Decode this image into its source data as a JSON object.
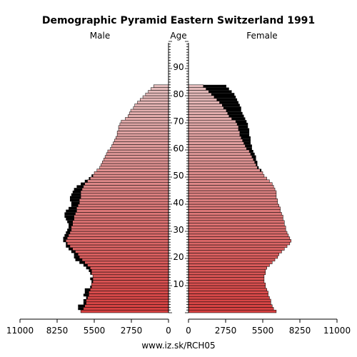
{
  "chart_data": {
    "type": "bar",
    "title": "Demographic Pyramid Eastern Switzerland 1991",
    "male_label": "Male",
    "female_label": "Female",
    "age_label": "Age",
    "source": "www.iz.sk/RCH05",
    "xlim": [
      0,
      11000
    ],
    "x_ticks": [
      "11000",
      "8250",
      "5500",
      "2750",
      "0"
    ],
    "x_tick_values": [
      11000,
      8250,
      5500,
      2750,
      0
    ],
    "age_ticks": [
      10,
      20,
      30,
      40,
      50,
      60,
      70,
      80,
      90
    ],
    "bar_color": "#d98888",
    "excess_color": "#000000",
    "ages": [
      0,
      1,
      2,
      3,
      4,
      5,
      6,
      7,
      8,
      9,
      10,
      11,
      12,
      13,
      14,
      15,
      16,
      17,
      18,
      19,
      20,
      21,
      22,
      23,
      24,
      25,
      26,
      27,
      28,
      29,
      30,
      31,
      32,
      33,
      34,
      35,
      36,
      37,
      38,
      39,
      40,
      41,
      42,
      43,
      44,
      45,
      46,
      47,
      48,
      49,
      50,
      51,
      52,
      53,
      54,
      55,
      56,
      57,
      58,
      59,
      60,
      61,
      62,
      63,
      64,
      65,
      66,
      67,
      68,
      69,
      70,
      71,
      72,
      73,
      74,
      75,
      76,
      77,
      78,
      79,
      80,
      81,
      82,
      83,
      84,
      85,
      86,
      87,
      88,
      89,
      90,
      91,
      92,
      93,
      94,
      95,
      96,
      97,
      98,
      99
    ],
    "male": [
      6500,
      6700,
      6700,
      6300,
      6300,
      6100,
      6300,
      6200,
      6200,
      5800,
      5700,
      5700,
      5800,
      5600,
      5800,
      5900,
      6100,
      6300,
      6600,
      6900,
      7000,
      7000,
      7200,
      7400,
      7600,
      7600,
      7800,
      7800,
      7700,
      7600,
      7500,
      7400,
      7400,
      7500,
      7600,
      7700,
      7700,
      7600,
      7400,
      7200,
      7200,
      7300,
      7300,
      7200,
      7100,
      7000,
      6800,
      6500,
      6200,
      5900,
      5700,
      5500,
      5300,
      5100,
      5000,
      4900,
      4800,
      4700,
      4600,
      4500,
      4300,
      4200,
      4100,
      4000,
      3900,
      3800,
      3800,
      3700,
      3700,
      3600,
      3500,
      3200,
      3000,
      2900,
      2800,
      2600,
      2500,
      2300,
      2100,
      1900,
      1700,
      1500,
      1300,
      1100,
      0,
      0,
      0,
      0,
      0,
      0,
      0,
      0,
      0,
      0,
      0,
      0,
      0,
      0,
      0,
      0
    ],
    "female": [
      6500,
      6300,
      6200,
      6100,
      6100,
      6000,
      5900,
      5900,
      5800,
      5700,
      5700,
      5600,
      5600,
      5600,
      5700,
      5700,
      5800,
      6000,
      6200,
      6400,
      6600,
      6700,
      6900,
      7100,
      7300,
      7500,
      7600,
      7500,
      7400,
      7300,
      7200,
      7200,
      7100,
      7100,
      7000,
      7000,
      6900,
      6800,
      6800,
      6700,
      6600,
      6600,
      6500,
      6500,
      6500,
      6400,
      6300,
      6200,
      6000,
      5800,
      5600,
      5500,
      5400,
      5200,
      5100,
      5100,
      5000,
      5000,
      4900,
      4800,
      4700,
      4700,
      4600,
      4600,
      4600,
      4500,
      4500,
      4500,
      4400,
      4400,
      4300,
      4200,
      4100,
      4000,
      3900,
      3900,
      3800,
      3700,
      3600,
      3500,
      3400,
      3200,
      3000,
      2800,
      0,
      0,
      0,
      0,
      0,
      0,
      0,
      0,
      0,
      0,
      0,
      0,
      0,
      0,
      0,
      0
    ]
  }
}
